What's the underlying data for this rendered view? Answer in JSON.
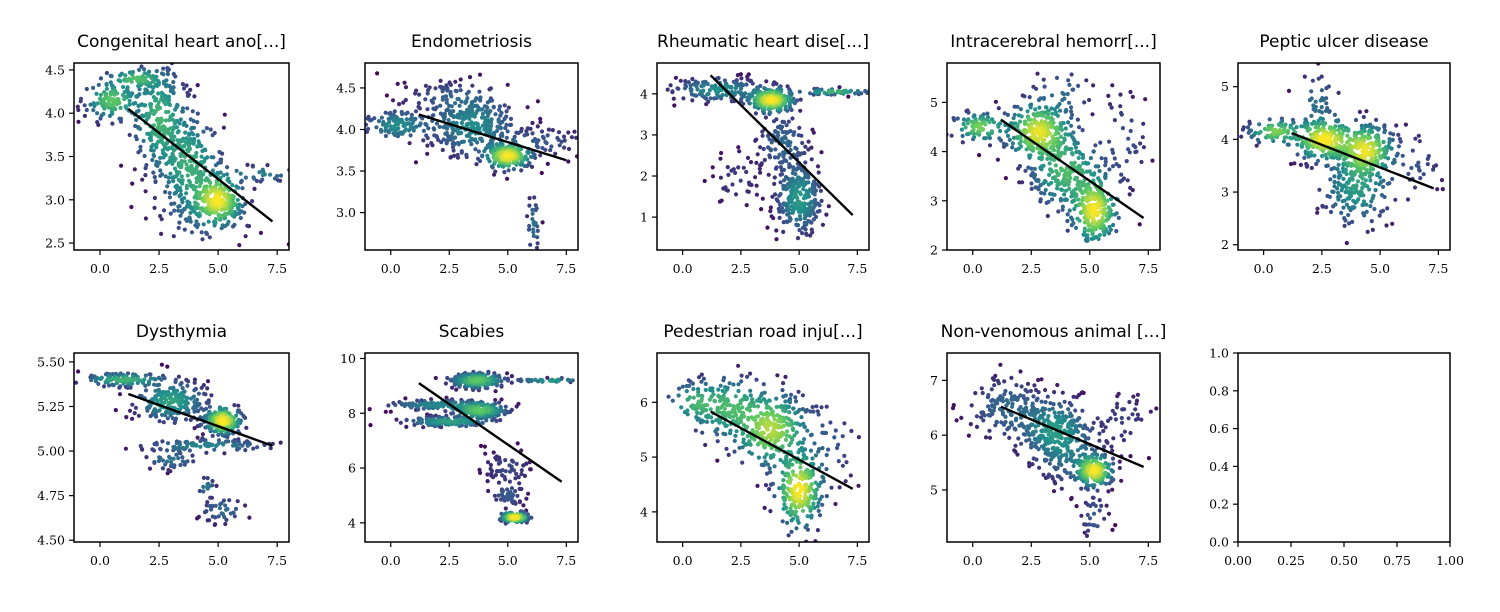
{
  "chart_data": [
    {
      "type": "scatter",
      "title": "Congenital heart ano[...]",
      "xlim": [
        -1.1,
        8.0
      ],
      "ylim": [
        2.42,
        4.58
      ],
      "xticks": [
        0.0,
        2.5,
        5.0,
        7.5
      ],
      "yticks": [
        2.5,
        3.0,
        3.5,
        4.0,
        4.5
      ],
      "xtick_labels": [
        "0.0",
        "2.5",
        "5.0",
        "7.5"
      ],
      "ytick_labels": [
        "2.5",
        "3.0",
        "3.5",
        "4.0",
        "4.5"
      ],
      "trend_line": {
        "x": [
          1.2,
          7.3
        ],
        "y": [
          4.05,
          2.75
        ]
      },
      "clusters": [
        {
          "cx": 0.5,
          "cy": 4.15,
          "sx": 0.6,
          "sy": 0.12,
          "n": 120
        },
        {
          "cx": 2.5,
          "cy": 3.95,
          "sx": 0.6,
          "sy": 0.3,
          "n": 240
        },
        {
          "cx": 3.8,
          "cy": 3.4,
          "sx": 0.7,
          "sy": 0.3,
          "n": 260
        },
        {
          "cx": 5.0,
          "cy": 3.0,
          "sx": 0.55,
          "sy": 0.15,
          "n": 220
        },
        {
          "cx": 4.4,
          "cy": 2.8,
          "sx": 1.2,
          "sy": 0.2,
          "n": 60
        },
        {
          "cx": 1.5,
          "cy": 4.4,
          "sx": 0.6,
          "sy": 0.06,
          "n": 50
        },
        {
          "cx": 6.8,
          "cy": 3.3,
          "sx": 0.9,
          "sy": 0.05,
          "n": 30
        }
      ]
    },
    {
      "type": "scatter",
      "title": "Endometriosis",
      "xlim": [
        -1.1,
        8.0
      ],
      "ylim": [
        2.55,
        4.8
      ],
      "xticks": [
        0.0,
        2.5,
        5.0,
        7.5
      ],
      "yticks": [
        3.0,
        3.5,
        4.0,
        4.5
      ],
      "xtick_labels": [
        "0.0",
        "2.5",
        "5.0",
        "7.5"
      ],
      "ytick_labels": [
        "3.0",
        "3.5",
        "4.0",
        "4.5"
      ],
      "trend_line": {
        "x": [
          1.2,
          7.5
        ],
        "y": [
          4.18,
          3.63
        ]
      },
      "clusters": [
        {
          "cx": 0.3,
          "cy": 4.05,
          "sx": 0.8,
          "sy": 0.1,
          "n": 120
        },
        {
          "cx": 3.5,
          "cy": 4.05,
          "sx": 1.0,
          "sy": 0.2,
          "n": 300
        },
        {
          "cx": 5.0,
          "cy": 3.68,
          "sx": 0.5,
          "sy": 0.08,
          "n": 220
        },
        {
          "cx": 2.5,
          "cy": 4.4,
          "sx": 1.2,
          "sy": 0.1,
          "n": 60
        },
        {
          "cx": 6.5,
          "cy": 3.85,
          "sx": 0.9,
          "sy": 0.1,
          "n": 50
        },
        {
          "cx": 6.1,
          "cy": 2.85,
          "sx": 0.15,
          "sy": 0.2,
          "n": 30
        }
      ]
    },
    {
      "type": "scatter",
      "title": "Rheumatic heart dise[...]",
      "xlim": [
        -1.1,
        8.0
      ],
      "ylim": [
        0.2,
        4.75
      ],
      "xticks": [
        0.0,
        2.5,
        5.0,
        7.5
      ],
      "yticks": [
        1,
        2,
        3,
        4
      ],
      "xtick_labels": [
        "0.0",
        "2.5",
        "5.0",
        "7.5"
      ],
      "ytick_labels": [
        "1",
        "2",
        "3",
        "4"
      ],
      "trend_line": {
        "x": [
          1.2,
          7.3
        ],
        "y": [
          4.45,
          1.05
        ]
      },
      "clusters": [
        {
          "cx": 3.8,
          "cy": 3.85,
          "sx": 0.5,
          "sy": 0.15,
          "n": 260
        },
        {
          "cx": 1.5,
          "cy": 4.1,
          "sx": 1.0,
          "sy": 0.15,
          "n": 150
        },
        {
          "cx": 5.0,
          "cy": 1.45,
          "sx": 0.5,
          "sy": 0.45,
          "n": 260
        },
        {
          "cx": 4.3,
          "cy": 2.8,
          "sx": 0.6,
          "sy": 0.4,
          "n": 120
        },
        {
          "cx": 6.5,
          "cy": 4.05,
          "sx": 0.8,
          "sy": 0.04,
          "n": 50
        },
        {
          "cx": 2.3,
          "cy": 1.9,
          "sx": 0.6,
          "sy": 0.4,
          "n": 40
        }
      ]
    },
    {
      "type": "scatter",
      "title": "Intracerebral hemorr[...]",
      "xlim": [
        -1.1,
        8.0
      ],
      "ylim": [
        2.0,
        5.8
      ],
      "xticks": [
        0.0,
        2.5,
        5.0,
        7.5
      ],
      "yticks": [
        2,
        3,
        4,
        5
      ],
      "xtick_labels": [
        "0.0",
        "2.5",
        "5.0",
        "7.5"
      ],
      "ytick_labels": [
        "2",
        "3",
        "4",
        "5"
      ],
      "trend_line": {
        "x": [
          1.2,
          7.3
        ],
        "y": [
          4.65,
          2.65
        ]
      },
      "clusters": [
        {
          "cx": 2.8,
          "cy": 4.4,
          "sx": 0.7,
          "sy": 0.3,
          "n": 260
        },
        {
          "cx": 5.2,
          "cy": 2.8,
          "sx": 0.5,
          "sy": 0.35,
          "n": 230
        },
        {
          "cx": 4.0,
          "cy": 3.6,
          "sx": 0.8,
          "sy": 0.4,
          "n": 220
        },
        {
          "cx": 0.3,
          "cy": 4.5,
          "sx": 0.6,
          "sy": 0.15,
          "n": 80
        },
        {
          "cx": 3.8,
          "cy": 5.2,
          "sx": 0.7,
          "sy": 0.3,
          "n": 40
        },
        {
          "cx": 6.5,
          "cy": 4.2,
          "sx": 0.6,
          "sy": 0.6,
          "n": 40
        }
      ]
    },
    {
      "type": "scatter",
      "title": "Peptic ulcer disease",
      "xlim": [
        -1.1,
        8.0
      ],
      "ylim": [
        1.9,
        5.45
      ],
      "xticks": [
        0.0,
        2.5,
        5.0,
        7.5
      ],
      "yticks": [
        2,
        3,
        4,
        5
      ],
      "xtick_labels": [
        "0.0",
        "2.5",
        "5.0",
        "7.5"
      ],
      "ytick_labels": [
        "2",
        "3",
        "4",
        "5"
      ],
      "trend_line": {
        "x": [
          1.2,
          7.3
        ],
        "y": [
          4.12,
          3.07
        ]
      },
      "clusters": [
        {
          "cx": 2.6,
          "cy": 4.0,
          "sx": 0.7,
          "sy": 0.2,
          "n": 230
        },
        {
          "cx": 4.4,
          "cy": 3.8,
          "sx": 0.6,
          "sy": 0.25,
          "n": 220
        },
        {
          "cx": 4.0,
          "cy": 3.1,
          "sx": 0.8,
          "sy": 0.4,
          "n": 180
        },
        {
          "cx": 0.5,
          "cy": 4.15,
          "sx": 0.6,
          "sy": 0.12,
          "n": 80
        },
        {
          "cx": 2.3,
          "cy": 4.7,
          "sx": 0.5,
          "sy": 0.3,
          "n": 40
        },
        {
          "cx": 6.5,
          "cy": 3.5,
          "sx": 0.7,
          "sy": 0.4,
          "n": 40
        }
      ]
    },
    {
      "type": "scatter",
      "title": "Dysthymia",
      "xlim": [
        -1.1,
        8.0
      ],
      "ylim": [
        4.49,
        5.55
      ],
      "xticks": [
        0.0,
        2.5,
        5.0,
        7.5
      ],
      "yticks": [
        4.5,
        4.75,
        5.0,
        5.25,
        5.5
      ],
      "xtick_labels": [
        "0.0",
        "2.5",
        "5.0",
        "7.5"
      ],
      "ytick_labels": [
        "4.50",
        "4.75",
        "5.00",
        "5.25",
        "5.50"
      ],
      "trend_line": {
        "x": [
          1.2,
          7.3
        ],
        "y": [
          5.32,
          5.03
        ]
      },
      "clusters": [
        {
          "cx": 3.0,
          "cy": 5.28,
          "sx": 0.8,
          "sy": 0.06,
          "n": 220
        },
        {
          "cx": 5.2,
          "cy": 5.17,
          "sx": 0.4,
          "sy": 0.04,
          "n": 200
        },
        {
          "cx": 1.0,
          "cy": 5.4,
          "sx": 0.9,
          "sy": 0.02,
          "n": 100
        },
        {
          "cx": 4.5,
          "cy": 5.03,
          "sx": 1.5,
          "sy": 0.02,
          "n": 90
        },
        {
          "cx": 3.0,
          "cy": 4.95,
          "sx": 0.6,
          "sy": 0.03,
          "n": 40
        },
        {
          "cx": 5.2,
          "cy": 4.67,
          "sx": 0.5,
          "sy": 0.04,
          "n": 40
        },
        {
          "cx": 4.5,
          "cy": 4.8,
          "sx": 0.2,
          "sy": 0.03,
          "n": 15
        }
      ]
    },
    {
      "type": "scatter",
      "title": "Scabies",
      "xlim": [
        -1.1,
        8.0
      ],
      "ylim": [
        3.3,
        10.2
      ],
      "xticks": [
        0.0,
        2.5,
        5.0,
        7.5
      ],
      "yticks": [
        4,
        6,
        8,
        10
      ],
      "xtick_labels": [
        "0.0",
        "2.5",
        "5.0",
        "7.5"
      ],
      "ytick_labels": [
        "4",
        "6",
        "8",
        "10"
      ],
      "trend_line": {
        "x": [
          1.2,
          7.3
        ],
        "y": [
          9.1,
          5.5
        ]
      },
      "clusters": [
        {
          "cx": 3.7,
          "cy": 9.2,
          "sx": 0.6,
          "sy": 0.15,
          "n": 200
        },
        {
          "cx": 3.8,
          "cy": 8.1,
          "sx": 0.6,
          "sy": 0.15,
          "n": 200
        },
        {
          "cx": 2.5,
          "cy": 7.7,
          "sx": 1.0,
          "sy": 0.1,
          "n": 140
        },
        {
          "cx": 2.0,
          "cy": 8.3,
          "sx": 1.2,
          "sy": 0.1,
          "n": 120
        },
        {
          "cx": 5.3,
          "cy": 4.2,
          "sx": 0.3,
          "sy": 0.1,
          "n": 120
        },
        {
          "cx": 5.0,
          "cy": 6.0,
          "sx": 0.6,
          "sy": 0.4,
          "n": 60
        },
        {
          "cx": 5.0,
          "cy": 5.0,
          "sx": 0.4,
          "sy": 0.25,
          "n": 40
        },
        {
          "cx": 6.8,
          "cy": 9.2,
          "sx": 0.8,
          "sy": 0.04,
          "n": 40
        }
      ]
    },
    {
      "type": "scatter",
      "title": "Pedestrian road inju[...]",
      "xlim": [
        -1.1,
        8.0
      ],
      "ylim": [
        3.45,
        6.9
      ],
      "xticks": [
        0.0,
        2.5,
        5.0,
        7.5
      ],
      "yticks": [
        4,
        5,
        6
      ],
      "xtick_labels": [
        "0.0",
        "2.5",
        "5.0",
        "7.5"
      ],
      "ytick_labels": [
        "4",
        "5",
        "6"
      ],
      "trend_line": {
        "x": [
          1.2,
          7.3
        ],
        "y": [
          5.83,
          4.42
        ]
      },
      "clusters": [
        {
          "cx": 3.8,
          "cy": 5.5,
          "sx": 0.8,
          "sy": 0.35,
          "n": 280
        },
        {
          "cx": 5.0,
          "cy": 4.4,
          "sx": 0.5,
          "sy": 0.35,
          "n": 220
        },
        {
          "cx": 2.0,
          "cy": 5.9,
          "sx": 0.8,
          "sy": 0.3,
          "n": 140
        },
        {
          "cx": 0.5,
          "cy": 6.0,
          "sx": 0.6,
          "sy": 0.2,
          "n": 60
        },
        {
          "cx": 6.2,
          "cy": 5.2,
          "sx": 0.8,
          "sy": 0.5,
          "n": 50
        }
      ]
    },
    {
      "type": "scatter",
      "title": "Non-venomous animal [...]",
      "xlim": [
        -1.1,
        8.0
      ],
      "ylim": [
        4.05,
        7.5
      ],
      "xticks": [
        0.0,
        2.5,
        5.0,
        7.5
      ],
      "yticks": [
        5,
        6,
        7
      ],
      "xtick_labels": [
        "0.0",
        "2.5",
        "5.0",
        "7.5"
      ],
      "ytick_labels": [
        "5",
        "6",
        "7"
      ],
      "trend_line": {
        "x": [
          1.2,
          7.3
        ],
        "y": [
          6.52,
          5.42
        ]
      },
      "clusters": [
        {
          "cx": 3.5,
          "cy": 6.1,
          "sx": 0.8,
          "sy": 0.3,
          "n": 260
        },
        {
          "cx": 5.2,
          "cy": 5.35,
          "sx": 0.4,
          "sy": 0.15,
          "n": 200
        },
        {
          "cx": 1.5,
          "cy": 6.5,
          "sx": 0.9,
          "sy": 0.3,
          "n": 140
        },
        {
          "cx": 4.2,
          "cy": 5.6,
          "sx": 0.8,
          "sy": 0.3,
          "n": 120
        },
        {
          "cx": 5.2,
          "cy": 4.5,
          "sx": 0.3,
          "sy": 0.25,
          "n": 30
        },
        {
          "cx": 6.5,
          "cy": 6.3,
          "sx": 0.7,
          "sy": 0.3,
          "n": 40
        }
      ]
    },
    {
      "type": "empty",
      "title": "",
      "xlim": [
        0.0,
        1.0
      ],
      "ylim": [
        0.0,
        1.0
      ],
      "xticks": [
        0.0,
        0.25,
        0.5,
        0.75,
        1.0
      ],
      "yticks": [
        0.0,
        0.2,
        0.4,
        0.6,
        0.8,
        1.0
      ],
      "xtick_labels": [
        "0.00",
        "0.25",
        "0.50",
        "0.75",
        "1.00"
      ],
      "ytick_labels": [
        "0.0",
        "0.2",
        "0.4",
        "0.6",
        "0.8",
        "1.0"
      ],
      "clusters": []
    }
  ],
  "style": {
    "colormap": [
      "#440154",
      "#3b528b",
      "#21918c",
      "#5ec962",
      "#fde725"
    ],
    "line_color": "#000000",
    "background": "#ffffff"
  }
}
